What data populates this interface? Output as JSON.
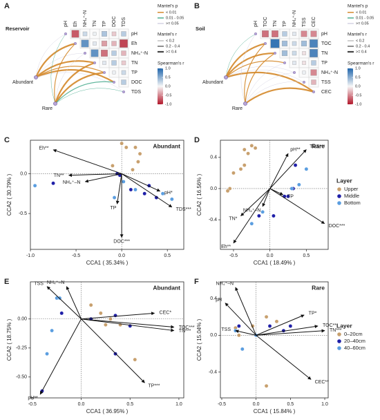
{
  "chart_data": [
    {
      "type": "correlation_heatmap",
      "panel": "A",
      "site": "Reservoir",
      "variables": [
        "pH",
        "Eh",
        "NH₄⁺-N",
        "TN",
        "TP",
        "DOC",
        "TDS"
      ],
      "matrix": [
        [
          null,
          -0.7,
          0.2,
          0.05,
          0.35,
          -0.2,
          0.3
        ],
        [
          null,
          null,
          0.7,
          0.1,
          -0.4,
          -0.3,
          -0.8
        ],
        [
          null,
          null,
          null,
          0.7,
          -0.6,
          0.3,
          -0.3
        ],
        [
          null,
          null,
          null,
          null,
          0.1,
          0.3,
          -0.2
        ],
        [
          null,
          null,
          null,
          null,
          null,
          0.05,
          0.2
        ],
        [
          null,
          null,
          null,
          null,
          null,
          null,
          0.3
        ],
        [
          null,
          null,
          null,
          null,
          null,
          null,
          null
        ]
      ],
      "groups": [
        "Abundant",
        "Rare"
      ],
      "links": [
        {
          "from": "Abundant",
          "to": "pH",
          "p": ">= 0.05",
          "r": "< 0.2"
        },
        {
          "from": "Abundant",
          "to": "Eh",
          "p": "< 0.01",
          "r": ">= 0.4"
        },
        {
          "from": "Abundant",
          "to": "NH₄⁺-N",
          "p": ">= 0.05",
          "r": "< 0.2"
        },
        {
          "from": "Abundant",
          "to": "TN",
          "p": "< 0.01",
          "r": ">= 0.4"
        },
        {
          "from": "Abundant",
          "to": "TP",
          "p": "< 0.01",
          "r": "0.2 - 0.4"
        },
        {
          "from": "Abundant",
          "to": "DOC",
          "p": "< 0.01",
          "r": ">= 0.4"
        },
        {
          "from": "Abundant",
          "to": "TDS",
          "p": ">= 0.05",
          "r": "< 0.2"
        },
        {
          "from": "Rare",
          "to": "pH",
          "p": "0.01 - 0.05",
          "r": "< 0.2"
        },
        {
          "from": "Rare",
          "to": "Eh",
          "p": "< 0.01",
          "r": "0.2 - 0.4"
        },
        {
          "from": "Rare",
          "to": "NH₄⁺-N",
          "p": ">= 0.05",
          "r": "< 0.2"
        },
        {
          "from": "Rare",
          "to": "TN",
          "p": "< 0.01",
          "r": ">= 0.4"
        },
        {
          "from": "Rare",
          "to": "TP",
          "p": "< 0.01",
          "r": ">= 0.4"
        },
        {
          "from": "Rare",
          "to": "DOC",
          "p": "0.01 - 0.05",
          "r": "0.2 - 0.4"
        },
        {
          "from": "Rare",
          "to": "TDS",
          "p": "0.01 - 0.05",
          "r": "< 0.2"
        }
      ],
      "mantel_p_title": "Mantel's p",
      "mantel_p": [
        {
          "label": "< 0.01",
          "color": "#d4882a"
        },
        {
          "label": "0.01 - 0.05",
          "color": "#4fae91"
        },
        {
          "label": ">= 0.05",
          "color": "#d4d2e2"
        }
      ],
      "mantel_r_title": "Mantel's r",
      "mantel_r": [
        "< 0.2",
        "0.2 - 0.4",
        ">= 0.4"
      ],
      "color_title": "Spearman's r",
      "clim": [
        -1,
        1
      ],
      "cticks": [
        {
          "value": 1,
          "label": "1.0"
        },
        0.5,
        {
          "value": 0,
          "label": "0.0"
        },
        -0.5,
        {
          "value": -1,
          "label": "-1.0"
        }
      ],
      "colormap": [
        "#b2182b",
        "#f7f7f7",
        "#2166ac"
      ]
    },
    {
      "type": "correlation_heatmap",
      "panel": "B",
      "site": "Soil",
      "variables": [
        "pH",
        "TOC",
        "TN",
        "TP",
        "NH₄⁺-N",
        "TSS",
        "CEC"
      ],
      "matrix": [
        [
          null,
          -0.6,
          -0.6,
          0.3,
          0.1,
          -0.5,
          -0.5
        ],
        [
          null,
          null,
          0.9,
          0.4,
          0.2,
          0.4,
          0.8
        ],
        [
          null,
          null,
          null,
          0.4,
          0.2,
          -0.1,
          0.8
        ],
        [
          null,
          null,
          null,
          null,
          0.1,
          -0.1,
          0.3
        ],
        [
          null,
          null,
          null,
          null,
          null,
          0.05,
          -0.5
        ],
        [
          null,
          null,
          null,
          null,
          null,
          null,
          -0.3
        ],
        [
          null,
          null,
          null,
          null,
          null,
          null,
          null
        ]
      ],
      "groups": [
        "Abundant",
        "Rare"
      ],
      "links": [
        {
          "from": "Abundant",
          "to": "pH",
          "p": "0.01 - 0.05",
          "r": "< 0.2"
        },
        {
          "from": "Abundant",
          "to": "TOC",
          "p": "< 0.01",
          "r": ">= 0.4"
        },
        {
          "from": "Abundant",
          "to": "TN",
          "p": "< 0.01",
          "r": ">= 0.4"
        },
        {
          "from": "Abundant",
          "to": "TP",
          "p": "< 0.01",
          "r": "0.2 - 0.4"
        },
        {
          "from": "Abundant",
          "to": "NH₄⁺-N",
          "p": ">= 0.05",
          "r": "< 0.2"
        },
        {
          "from": "Abundant",
          "to": "TSS",
          "p": ">= 0.05",
          "r": "< 0.2"
        },
        {
          "from": "Abundant",
          "to": "CEC",
          "p": "< 0.01",
          "r": ">= 0.4"
        },
        {
          "from": "Rare",
          "to": "pH",
          "p": ">= 0.05",
          "r": "< 0.2"
        },
        {
          "from": "Rare",
          "to": "TOC",
          "p": "< 0.01",
          "r": "0.2 - 0.4"
        },
        {
          "from": "Rare",
          "to": "TN",
          "p": "< 0.01",
          "r": "0.2 - 0.4"
        },
        {
          "from": "Rare",
          "to": "TP",
          "p": ">= 0.05",
          "r": "< 0.2"
        },
        {
          "from": "Rare",
          "to": "NH₄⁺-N",
          "p": ">= 0.05",
          "r": "< 0.2"
        },
        {
          "from": "Rare",
          "to": "TSS",
          "p": ">= 0.05",
          "r": "< 0.2"
        },
        {
          "from": "Rare",
          "to": "CEC",
          "p": "< 0.01",
          "r": ">= 0.4"
        }
      ],
      "mantel_p_title": "Mantel's p",
      "mantel_p": [
        {
          "label": "< 0.01",
          "color": "#d4882a"
        },
        {
          "label": "0.01 - 0.05",
          "color": "#4fae91"
        },
        {
          "label": ">= 0.05",
          "color": "#d4d2e2"
        }
      ],
      "mantel_r_title": "Mantel's r",
      "mantel_r": [
        "< 0.2",
        "0.2 - 0.4",
        ">= 0.4"
      ],
      "color_title": "Spearman's r",
      "clim": [
        -1,
        1
      ],
      "cticks": [
        {
          "value": 1,
          "label": "1.0"
        },
        0.5,
        {
          "value": 0,
          "label": "0.0"
        },
        -0.5,
        {
          "value": -1,
          "label": "-1.0"
        }
      ],
      "colormap": [
        "#b2182b",
        "#f7f7f7",
        "#2166ac"
      ]
    },
    {
      "type": "cca",
      "panel": "C",
      "title": "Abundant",
      "xlabel": "CCA1 ( 35.34% )",
      "ylabel": "CCA2 ( 30.79% )",
      "xlim": [
        -1.0,
        0.68
      ],
      "xticks": [
        {
          "value": -1,
          "label": "-1.0"
        },
        -0.5,
        {
          "value": 0,
          "label": "0.0"
        },
        0.5
      ],
      "ylim": [
        -0.95,
        0.42
      ],
      "yticks": [
        -0.5,
        {
          "value": 0,
          "label": "0.0"
        }
      ],
      "series": [
        {
          "color": "#c8a06e",
          "x": [
            0.0,
            0.05,
            0.15,
            0.18,
            0.12,
            -0.1,
            0.2
          ],
          "y": [
            0.38,
            0.33,
            0.33,
            0.15,
            0.05,
            0.1,
            0.25
          ]
        },
        {
          "color": "#1f1fa8",
          "x": [
            -0.75,
            -0.05,
            -0.02,
            0.1,
            0.3,
            0.25,
            0.38
          ],
          "y": [
            -0.12,
            0.0,
            -0.02,
            -0.2,
            -0.15,
            -0.25,
            -0.3
          ]
        },
        {
          "color": "#5b9ee0",
          "x": [
            -0.95,
            -0.08,
            0.15,
            0.45,
            0.55,
            0.02
          ],
          "y": [
            -0.15,
            -0.3,
            -0.2,
            -0.25,
            -0.32,
            -0.1
          ]
        }
      ],
      "vectors": [
        {
          "label": "Eh**",
          "x": -0.75,
          "y": 0.3
        },
        {
          "label": "TN**",
          "x": -0.58,
          "y": -0.02
        },
        {
          "label": "NH₄⁺–N",
          "x": -0.4,
          "y": -0.1
        },
        {
          "label": "TP",
          "x": -0.05,
          "y": -0.38
        },
        {
          "label": "DOC***",
          "x": 0.0,
          "y": -0.8
        },
        {
          "label": "pH*",
          "x": 0.42,
          "y": -0.22
        },
        {
          "label": "TDS***",
          "x": 0.55,
          "y": -0.42
        }
      ]
    },
    {
      "type": "cca",
      "panel": "D",
      "title": "Rare",
      "xlabel": "CCA1 ( 18.49% )",
      "ylabel": "CCA2 ( 16.56% )",
      "xlim": [
        -0.68,
        0.8
      ],
      "xticks": [
        -0.5,
        {
          "value": 0,
          "label": "0.0"
        },
        0.5
      ],
      "ylim": [
        -0.78,
        0.62
      ],
      "yticks": [
        0.4,
        {
          "value": 0,
          "label": "0.0"
        },
        -0.4
      ],
      "legend_title": "Layer",
      "series": [
        {
          "name": "Upper",
          "color": "#c8a06e",
          "x": [
            -0.35,
            -0.25,
            -0.35,
            -0.5,
            -0.4,
            -0.55,
            -0.58,
            -0.3,
            -0.2
          ],
          "y": [
            0.5,
            0.55,
            0.3,
            0.2,
            0.25,
            0.0,
            -0.03,
            0.45,
            0.52
          ]
        },
        {
          "name": "Middle",
          "color": "#1f1fa8",
          "x": [
            0.35,
            0.32,
            0.2,
            -0.15,
            0.05,
            0.25
          ],
          "y": [
            0.3,
            0.0,
            -0.1,
            -0.35,
            -0.35,
            -0.1
          ]
        },
        {
          "name": "Bottom",
          "color": "#5b9ee0",
          "x": [
            0.5,
            0.4,
            0.3,
            -0.1,
            -0.25
          ],
          "y": [
            0.25,
            0.05,
            0.0,
            -0.3,
            -0.45
          ]
        }
      ],
      "vectors": [
        {
          "label": "pH**",
          "x": 0.25,
          "y": 0.45
        },
        {
          "label": "TDS***",
          "x": 0.5,
          "y": 0.5
        },
        {
          "label": "TP",
          "x": 0.18,
          "y": -0.08
        },
        {
          "label": "NH₄⁺–N",
          "x": -0.1,
          "y": -0.23
        },
        {
          "label": "TN*",
          "x": -0.4,
          "y": -0.35
        },
        {
          "label": "Eh**",
          "x": -0.5,
          "y": -0.7
        },
        {
          "label": "DOC***",
          "x": 0.75,
          "y": -0.45
        }
      ]
    },
    {
      "type": "cca",
      "panel": "E",
      "title": "Abundant",
      "xlabel": "CCA1 ( 36.95% )",
      "ylabel": "CCA2 ( 18.75% )",
      "xlim": [
        -0.52,
        1.05
      ],
      "xticks": [
        -0.5,
        {
          "value": 0,
          "label": "0.0"
        },
        0.5,
        {
          "value": 1,
          "label": "1.0"
        }
      ],
      "ylim": [
        -0.68,
        0.32
      ],
      "yticks": [
        {
          "value": 0,
          "label": "0.00"
        },
        -0.25,
        {
          "value": -0.5,
          "label": "-0.50"
        }
      ],
      "series": [
        {
          "color": "#c8a06e",
          "x": [
            0.1,
            0.2,
            0.25,
            0.3,
            0.55,
            0.4
          ],
          "y": [
            0.12,
            0.05,
            -0.05,
            0.0,
            -0.35,
            -0.05
          ]
        },
        {
          "color": "#1f1fa8",
          "x": [
            -0.4,
            0.1,
            0.35,
            0.35,
            0.5,
            -0.2
          ],
          "y": [
            -0.62,
            0.0,
            0.03,
            -0.3,
            -0.06,
            0.05
          ]
        },
        {
          "color": "#5b9ee0",
          "x": [
            -0.25,
            -0.22,
            -0.3,
            -0.35
          ],
          "y": [
            0.18,
            0.18,
            -0.1,
            -0.3
          ]
        }
      ],
      "vectors": [
        {
          "label": "TSS",
          "x": -0.35,
          "y": 0.28
        },
        {
          "label": "NH₄⁺–N",
          "x": -0.15,
          "y": 0.28
        },
        {
          "label": "CEC*",
          "x": 0.75,
          "y": 0.05
        },
        {
          "label": "TOC***",
          "x": 0.95,
          "y": -0.07
        },
        {
          "label": "TN***",
          "x": 0.95,
          "y": -0.1
        },
        {
          "label": "TP***",
          "x": 0.65,
          "y": -0.55
        },
        {
          "label": "pH**",
          "x": -0.42,
          "y": -0.65
        }
      ]
    },
    {
      "type": "cca",
      "panel": "F",
      "title": "Rare",
      "xlabel": "CCA1 ( 15.84% )",
      "ylabel": "CCA2 ( 15.04% )",
      "xlim": [
        -0.52,
        1.05
      ],
      "xticks": [
        -0.5,
        {
          "value": 0,
          "label": "0.0"
        },
        0.5,
        {
          "value": 1,
          "label": "1.0"
        }
      ],
      "ylim": [
        -0.68,
        0.58
      ],
      "yticks": [
        0.4,
        {
          "value": 0,
          "label": "0.0"
        },
        -0.4
      ],
      "legend_title": "Layer",
      "series": [
        {
          "name": "0–20cm",
          "color": "#c8a06e",
          "x": [
            -0.3,
            -0.25,
            -0.05,
            0.15,
            0.3,
            0.15
          ],
          "y": [
            0.08,
            0.0,
            0.1,
            0.2,
            0.15,
            -0.55
          ]
        },
        {
          "name": "20–40cm",
          "color": "#1f1fa8",
          "x": [
            0.2,
            0.4,
            0.5,
            -0.25
          ],
          "y": [
            0.1,
            0.05,
            0.1,
            0.1
          ]
        },
        {
          "name": "40–60cm",
          "color": "#5b9ee0",
          "x": [
            -0.3,
            -0.2,
            0.0
          ],
          "y": [
            0.05,
            -0.15,
            0.0
          ]
        }
      ],
      "vectors": [
        {
          "label": "NH₄⁺–N",
          "x": -0.3,
          "y": 0.52
        },
        {
          "label": "pH",
          "x": -0.45,
          "y": 0.35
        },
        {
          "label": "TSS",
          "x": -0.3,
          "y": 0.05
        },
        {
          "label": "TP*",
          "x": 0.7,
          "y": 0.22
        },
        {
          "label": "TOC**",
          "x": 0.9,
          "y": 0.1
        },
        {
          "label": "TN***",
          "x": 1.0,
          "y": 0.05
        },
        {
          "label": "CEC**",
          "x": 0.8,
          "y": -0.48
        }
      ]
    }
  ]
}
